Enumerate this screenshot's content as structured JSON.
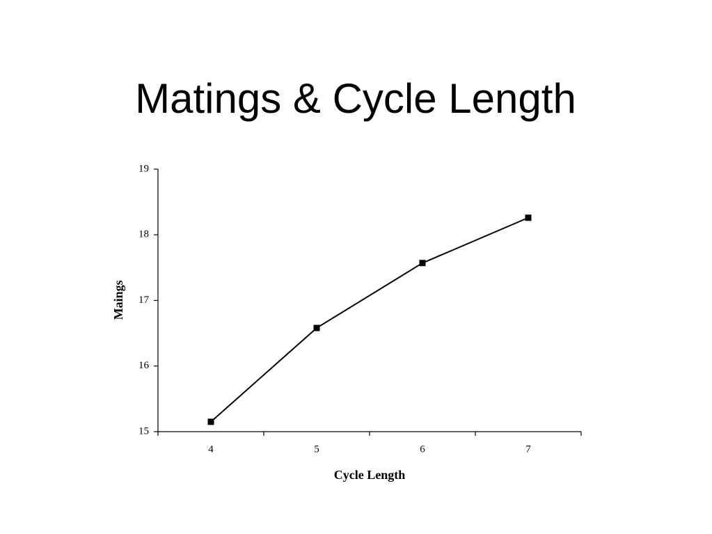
{
  "chart_data": {
    "type": "line",
    "title": "Matings & Cycle Length",
    "x_label": "Cycle Length",
    "y_label": "Maings",
    "categories": [
      "4",
      "5",
      "6",
      "7"
    ],
    "values": [
      15.15,
      16.58,
      17.57,
      18.26
    ],
    "color": "#000000",
    "marker": "square",
    "ylim": [
      15,
      19
    ],
    "yticks": [
      15,
      16,
      17,
      18,
      19
    ],
    "grid": false
  }
}
